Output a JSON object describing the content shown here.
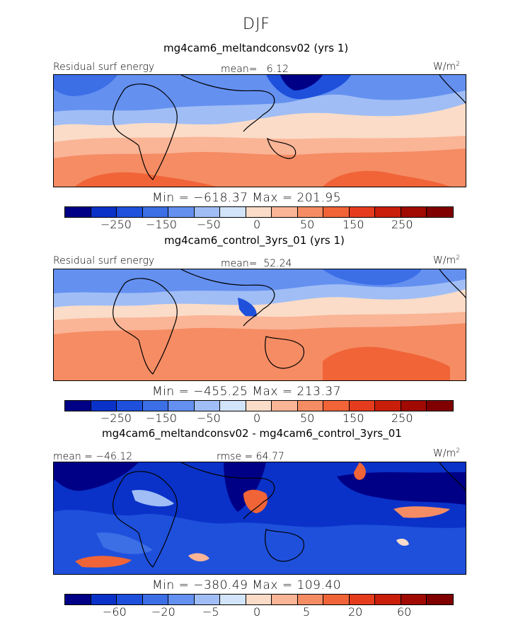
{
  "season_title": "DJF",
  "chart_data": [
    {
      "type": "heatmap",
      "title": "mg4cam6_meltandconsv02 (yrs 1)",
      "variable_label": "Residual surf energy",
      "units": "W/m",
      "units_exp": "2",
      "mean_label": "mean=",
      "mean_value": "6.12",
      "min_max_text": "Min = −618.37 Max = 201.95",
      "min": -618.37,
      "max": 201.95,
      "colorbar": {
        "tick_labels": [
          "−250",
          "−150",
          "−50",
          "0",
          "50",
          "150",
          "250"
        ],
        "colors": [
          "#000087",
          "#0a32c8",
          "#1e50dc",
          "#3c6ee6",
          "#6490f0",
          "#a0bef5",
          "#d2e4fa",
          "#fadcc8",
          "#fab496",
          "#f58c64",
          "#f06437",
          "#e63c1e",
          "#c81e0a",
          "#a00a00",
          "#800000"
        ]
      }
    },
    {
      "type": "heatmap",
      "title": "mg4cam6_control_3yrs_01 (yrs 1)",
      "variable_label": "Residual surf energy",
      "units": "W/m",
      "units_exp": "2",
      "mean_label": "mean=",
      "mean_value": "52.24",
      "min_max_text": "Min = −455.25 Max = 213.37",
      "min": -455.25,
      "max": 213.37,
      "colorbar": {
        "tick_labels": [
          "−250",
          "−150",
          "−50",
          "0",
          "50",
          "150",
          "250"
        ],
        "colors": [
          "#000087",
          "#0a32c8",
          "#1e50dc",
          "#3c6ee6",
          "#6490f0",
          "#a0bef5",
          "#d2e4fa",
          "#fadcc8",
          "#fab496",
          "#f58c64",
          "#f06437",
          "#e63c1e",
          "#c81e0a",
          "#a00a00",
          "#800000"
        ]
      }
    },
    {
      "type": "heatmap",
      "title": "mg4cam6_meltandconsv02 - mg4cam6_control_3yrs_01",
      "units": "W/m",
      "units_exp": "2",
      "mean_label": "mean = −46.12",
      "rmse_label": "rmse =  64.77",
      "mean": -46.12,
      "rmse": 64.77,
      "min_max_text": "Min = −380.49 Max = 109.40",
      "min": -380.49,
      "max": 109.4,
      "colorbar": {
        "tick_labels": [
          "−60",
          "−20",
          "−5",
          "0",
          "5",
          "20",
          "60"
        ],
        "colors": [
          "#000087",
          "#0a32c8",
          "#1e50dc",
          "#3c6ee6",
          "#6490f0",
          "#a0bef5",
          "#d2e4fa",
          "#fadcc8",
          "#fab496",
          "#f58c64",
          "#f06437",
          "#e63c1e",
          "#c81e0a",
          "#a00a00",
          "#800000"
        ]
      }
    }
  ]
}
